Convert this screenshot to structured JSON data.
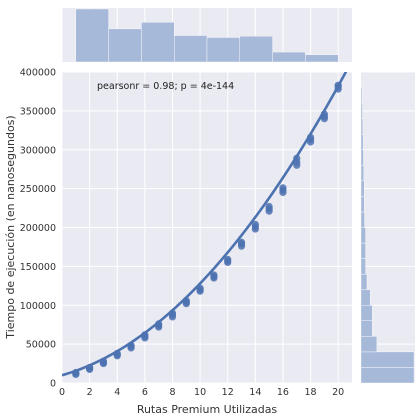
{
  "chart_data": {
    "type": "scatter",
    "xlabel": "Rutas Premium Utilizadas",
    "ylabel": "Tiempo de ejecución (en nanosegundos)",
    "xlim": [
      0,
      21
    ],
    "ylim": [
      0,
      400000
    ],
    "xticks": [
      0,
      2,
      4,
      6,
      8,
      10,
      12,
      14,
      16,
      18,
      20
    ],
    "yticks": [
      0,
      50000,
      100000,
      150000,
      200000,
      250000,
      300000,
      350000,
      400000
    ],
    "annotation": "pearsonr = 0.98; p = 4e-144",
    "grid": true,
    "colors": {
      "series": "#4c72b0",
      "hist": "#a7b9d9",
      "panel_bg": "#eaeaf2",
      "grid": "#ffffff"
    },
    "series": [
      {
        "points": [
          [
            1,
            11000
          ],
          [
            1,
            12500
          ],
          [
            1,
            13500
          ],
          [
            2,
            17500
          ],
          [
            2,
            19000
          ],
          [
            2,
            20000
          ],
          [
            3,
            25000
          ],
          [
            3,
            26500
          ],
          [
            3,
            28000
          ],
          [
            4,
            35000
          ],
          [
            4,
            36500
          ],
          [
            4,
            38000
          ],
          [
            5,
            45000
          ],
          [
            5,
            47000
          ],
          [
            5,
            48500
          ],
          [
            6,
            58000
          ],
          [
            6,
            60000
          ],
          [
            6,
            62000
          ],
          [
            7,
            72000
          ],
          [
            7,
            74000
          ],
          [
            7,
            76000
          ],
          [
            8,
            85000
          ],
          [
            8,
            88000
          ],
          [
            8,
            90000
          ],
          [
            9,
            102000
          ],
          [
            9,
            104000
          ],
          [
            9,
            106000
          ],
          [
            10,
            118000
          ],
          [
            10,
            120000
          ],
          [
            10,
            122000
          ],
          [
            11,
            135000
          ],
          [
            11,
            137000
          ],
          [
            11,
            139000
          ],
          [
            12,
            155000
          ],
          [
            12,
            157000
          ],
          [
            12,
            159000
          ],
          [
            13,
            176000
          ],
          [
            13,
            179000
          ],
          [
            13,
            181000
          ],
          [
            14,
            198000
          ],
          [
            14,
            201000
          ],
          [
            14,
            204000
          ],
          [
            15,
            221000
          ],
          [
            15,
            224000
          ],
          [
            15,
            227000
          ],
          [
            16,
            245000
          ],
          [
            16,
            248000
          ],
          [
            16,
            251000
          ],
          [
            17,
            280000
          ],
          [
            17,
            284000
          ],
          [
            17,
            289000
          ],
          [
            18,
            310000
          ],
          [
            18,
            313000
          ],
          [
            18,
            316000
          ],
          [
            19,
            340000
          ],
          [
            19,
            343000
          ],
          [
            19,
            346000
          ],
          [
            20,
            378000
          ],
          [
            20,
            381000
          ],
          [
            20,
            383000
          ]
        ]
      }
    ],
    "fit": {
      "order": 2,
      "x_range": [
        0,
        21
      ],
      "coef": [
        10000,
        5000,
        680
      ]
    },
    "x_hist": {
      "bins": [
        1,
        3.375,
        5.75,
        8.125,
        10.5,
        12.875,
        15.25,
        17.625,
        20
      ],
      "counts": [
        8,
        5,
        6,
        4,
        3.7,
        3.9,
        1.5,
        1.1
      ]
    },
    "y_hist": {
      "bins": [
        0,
        20000,
        40000,
        60000,
        80000,
        100000,
        120000,
        140000,
        160000,
        180000,
        200000,
        220000,
        240000,
        260000,
        280000,
        300000,
        320000,
        340000,
        360000,
        380000
      ],
      "counts": [
        15,
        15,
        4.5,
        3.2,
        3.2,
        2.6,
        1.7,
        1.3,
        1.3,
        1.3,
        1.0,
        0.9,
        0.9,
        0.8,
        0.7,
        0.6,
        0.5,
        0.4,
        0.3
      ]
    }
  }
}
